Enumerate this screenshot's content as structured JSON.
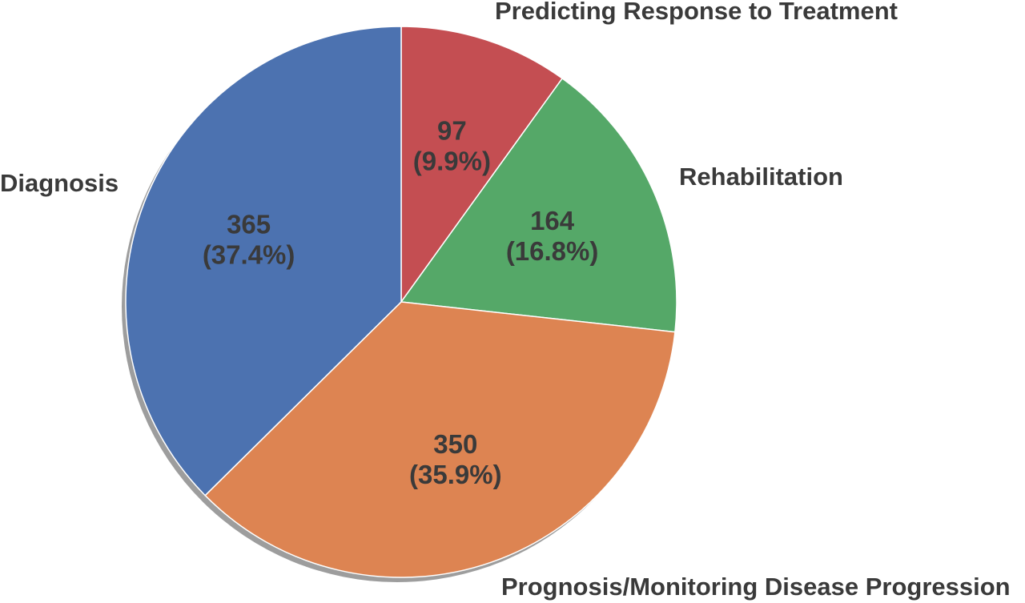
{
  "chart_data": {
    "type": "pie",
    "slices": [
      {
        "label": "Predicting Response to Treatment",
        "value": 97,
        "percent_text": "(9.9%)",
        "color": "#c44e52"
      },
      {
        "label": "Rehabilitation",
        "value": 164,
        "percent_text": "(16.8%)",
        "color": "#55a868"
      },
      {
        "label": "Prognosis/Monitoring Disease Progression",
        "value": 350,
        "percent_text": "(35.9%)",
        "color": "#dd8452"
      },
      {
        "label": "Diagnosis",
        "value": 365,
        "percent_text": "(37.4%)",
        "color": "#4c72b0"
      }
    ],
    "start_angle": "12 o'clock",
    "direction": "clockwise",
    "shadow": true
  }
}
